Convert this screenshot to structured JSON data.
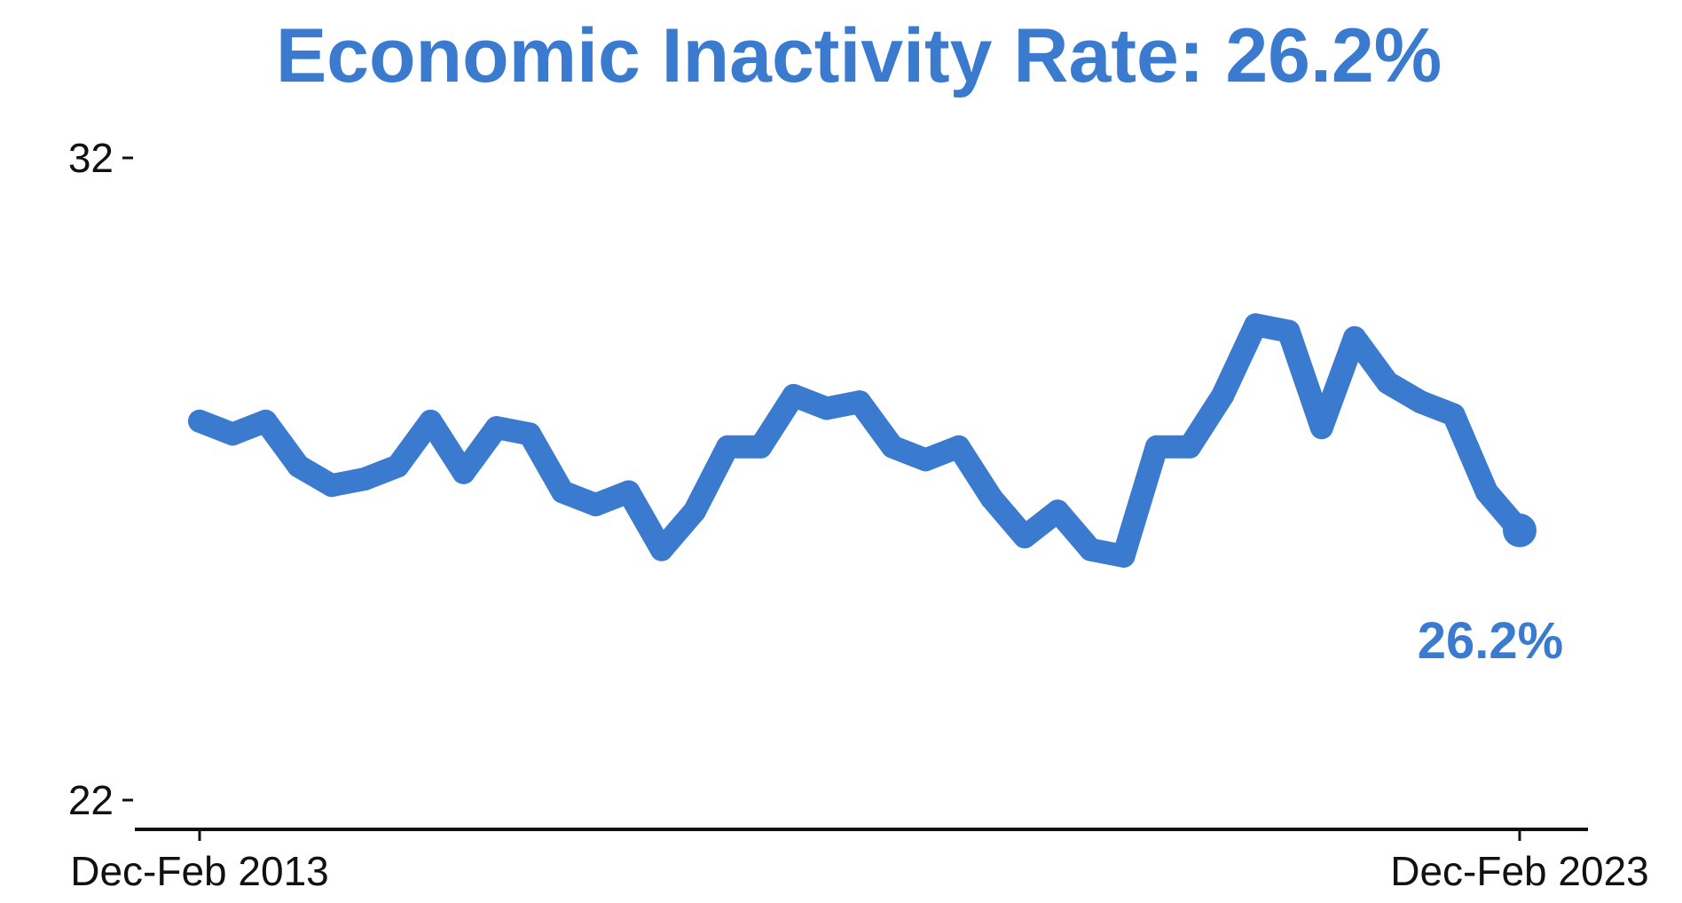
{
  "colors": {
    "series": "#3a7bcf",
    "axis": "#111111",
    "text": "#111111"
  },
  "chart_data": {
    "type": "line",
    "title": "Economic Inactivity Rate: 26.2%",
    "xlabel": "",
    "ylabel": "",
    "ylim": [
      22,
      32
    ],
    "y_ticks": [
      {
        "value": 22,
        "label": "22"
      },
      {
        "value": 32,
        "label": "32"
      }
    ],
    "x_ticks": [
      {
        "index": 0,
        "label": "Dec-Feb 2013"
      },
      {
        "index": 40,
        "label": "Dec-Feb 2023"
      }
    ],
    "grid": false,
    "legend": "none",
    "series": [
      {
        "values": [
          27.9,
          27.7,
          27.9,
          27.2,
          26.9,
          27.0,
          27.2,
          27.9,
          27.1,
          27.8,
          27.7,
          26.8,
          26.6,
          26.8,
          25.9,
          26.5,
          27.5,
          27.5,
          28.3,
          28.1,
          28.2,
          27.5,
          27.3,
          27.5,
          26.7,
          26.1,
          26.5,
          25.9,
          25.8,
          27.5,
          27.5,
          28.3,
          29.4,
          29.3,
          27.8,
          29.2,
          28.5,
          28.2,
          28.0,
          26.8,
          26.2
        ]
      }
    ],
    "end_label": "26.2%"
  }
}
